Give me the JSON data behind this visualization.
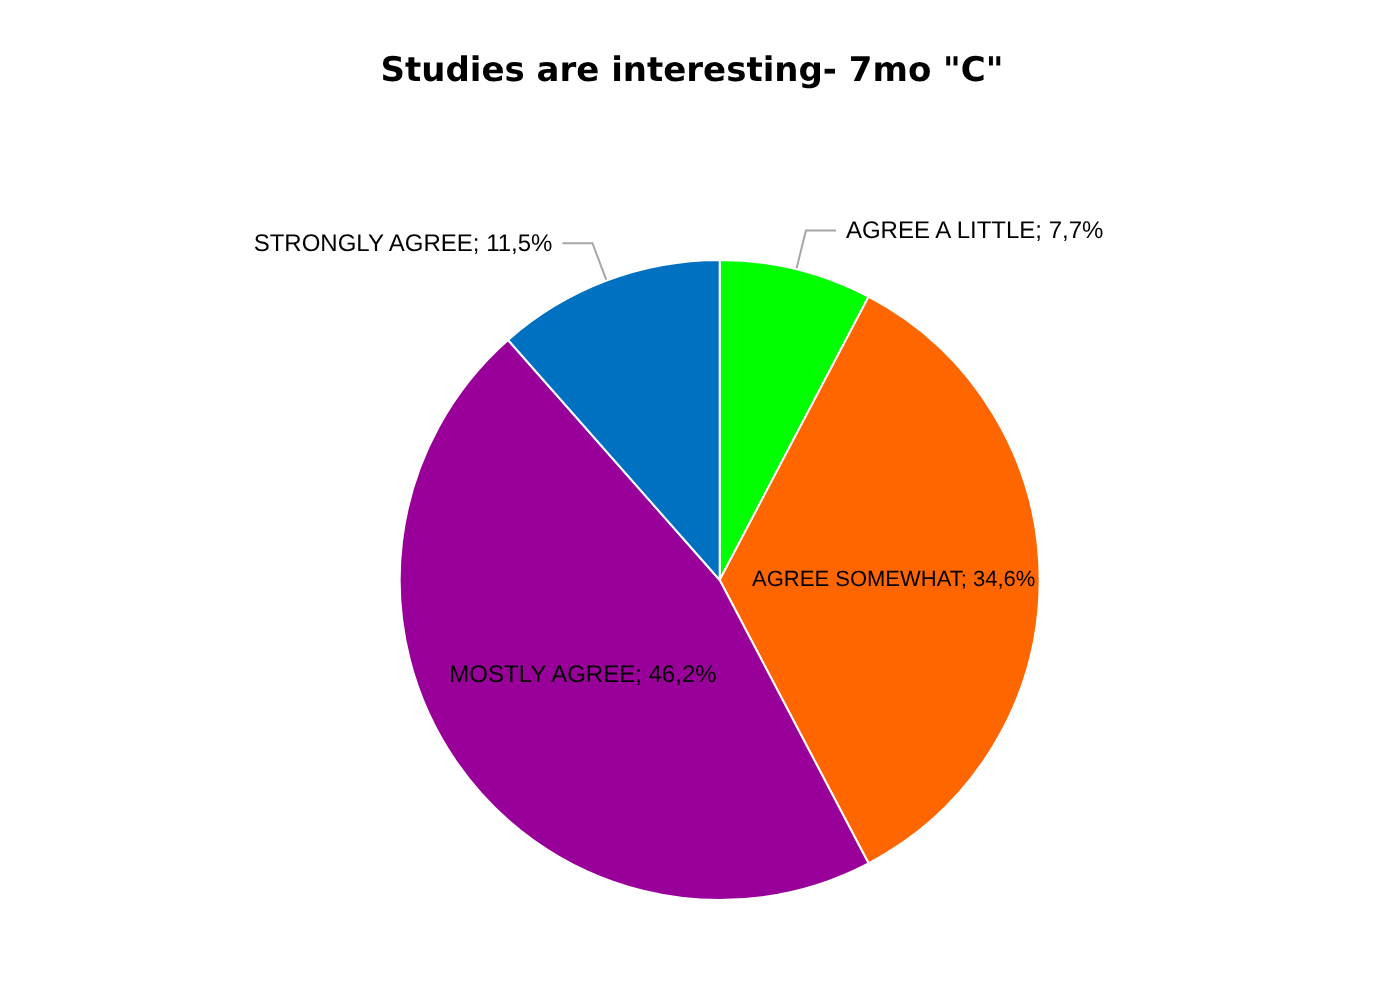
{
  "chart_data": {
    "type": "pie",
    "title": "Studies are interesting- 7mo \"C\"",
    "categories": [
      "AGREE A LITTLE",
      "AGREE SOMEWHAT",
      "MOSTLY AGREE",
      "STRONGLY AGREE"
    ],
    "values": [
      7.7,
      34.6,
      46.2,
      11.5
    ],
    "value_labels": [
      "7,7%",
      "34,6%",
      "46,2%",
      "11,5%"
    ],
    "colors": [
      "#00ff00",
      "#ff6600",
      "#990099",
      "#0070c0"
    ],
    "legend": false
  }
}
